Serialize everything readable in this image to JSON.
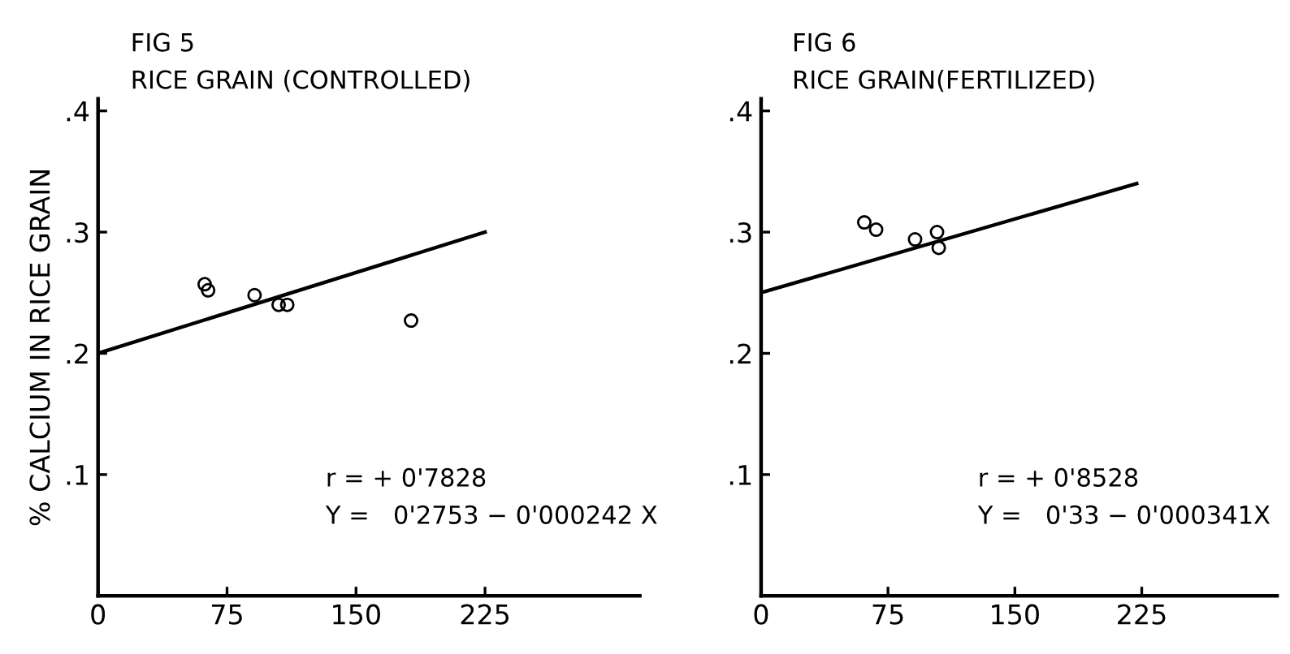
{
  "chart_data": [
    {
      "type": "scatter",
      "title": "FIG 5",
      "subtitle": "RICE GRAIN (CONTROLLED)",
      "ylabel": "% CALCIUM IN RICE GRAIN",
      "xlim": [
        0,
        315
      ],
      "ylim": [
        0,
        0.41
      ],
      "xticks": [
        0,
        75,
        150,
        225
      ],
      "yticks": [
        {
          "value": 0.1,
          "label": ".1"
        },
        {
          "value": 0.2,
          "label": ".2"
        },
        {
          "value": 0.3,
          "label": ".3"
        },
        {
          "value": 0.4,
          "label": ".4"
        }
      ],
      "grid": false,
      "legend": false,
      "marker": "circle",
      "series": [
        {
          "color": "#000000",
          "x": [
            62,
            64,
            91,
            105,
            110,
            182
          ],
          "values": [
            0.257,
            0.252,
            0.248,
            0.24,
            0.24,
            0.227
          ]
        },
        {
          "type": "line",
          "color": "#000000",
          "marker": "none",
          "x": [
            0,
            225
          ],
          "values": [
            0.2,
            0.3
          ]
        }
      ],
      "annotations": [
        "r = + 0'7828",
        "Y =   0'2753 − 0'000242 X"
      ]
    },
    {
      "type": "scatter",
      "title": "FIG 6",
      "subtitle": "RICE GRAIN(FERTILIZED)",
      "xlim": [
        0,
        305
      ],
      "ylim": [
        0,
        0.41
      ],
      "xticks": [
        0,
        75,
        150,
        225
      ],
      "yticks": [
        {
          "value": 0.1,
          "label": ".1"
        },
        {
          "value": 0.2,
          "label": ".2"
        },
        {
          "value": 0.3,
          "label": ".3"
        },
        {
          "value": 0.4,
          "label": ".4"
        }
      ],
      "grid": false,
      "legend": false,
      "marker": "circle",
      "series": [
        {
          "color": "#000000",
          "x": [
            61,
            68,
            91,
            104,
            105
          ],
          "values": [
            0.308,
            0.302,
            0.294,
            0.3,
            0.287
          ]
        },
        {
          "type": "line",
          "color": "#000000",
          "marker": "none",
          "x": [
            0,
            222
          ],
          "values": [
            0.25,
            0.34
          ]
        }
      ],
      "annotations": [
        "r = + 0'8528",
        "Y =   0'33 − 0'000341X"
      ]
    }
  ]
}
